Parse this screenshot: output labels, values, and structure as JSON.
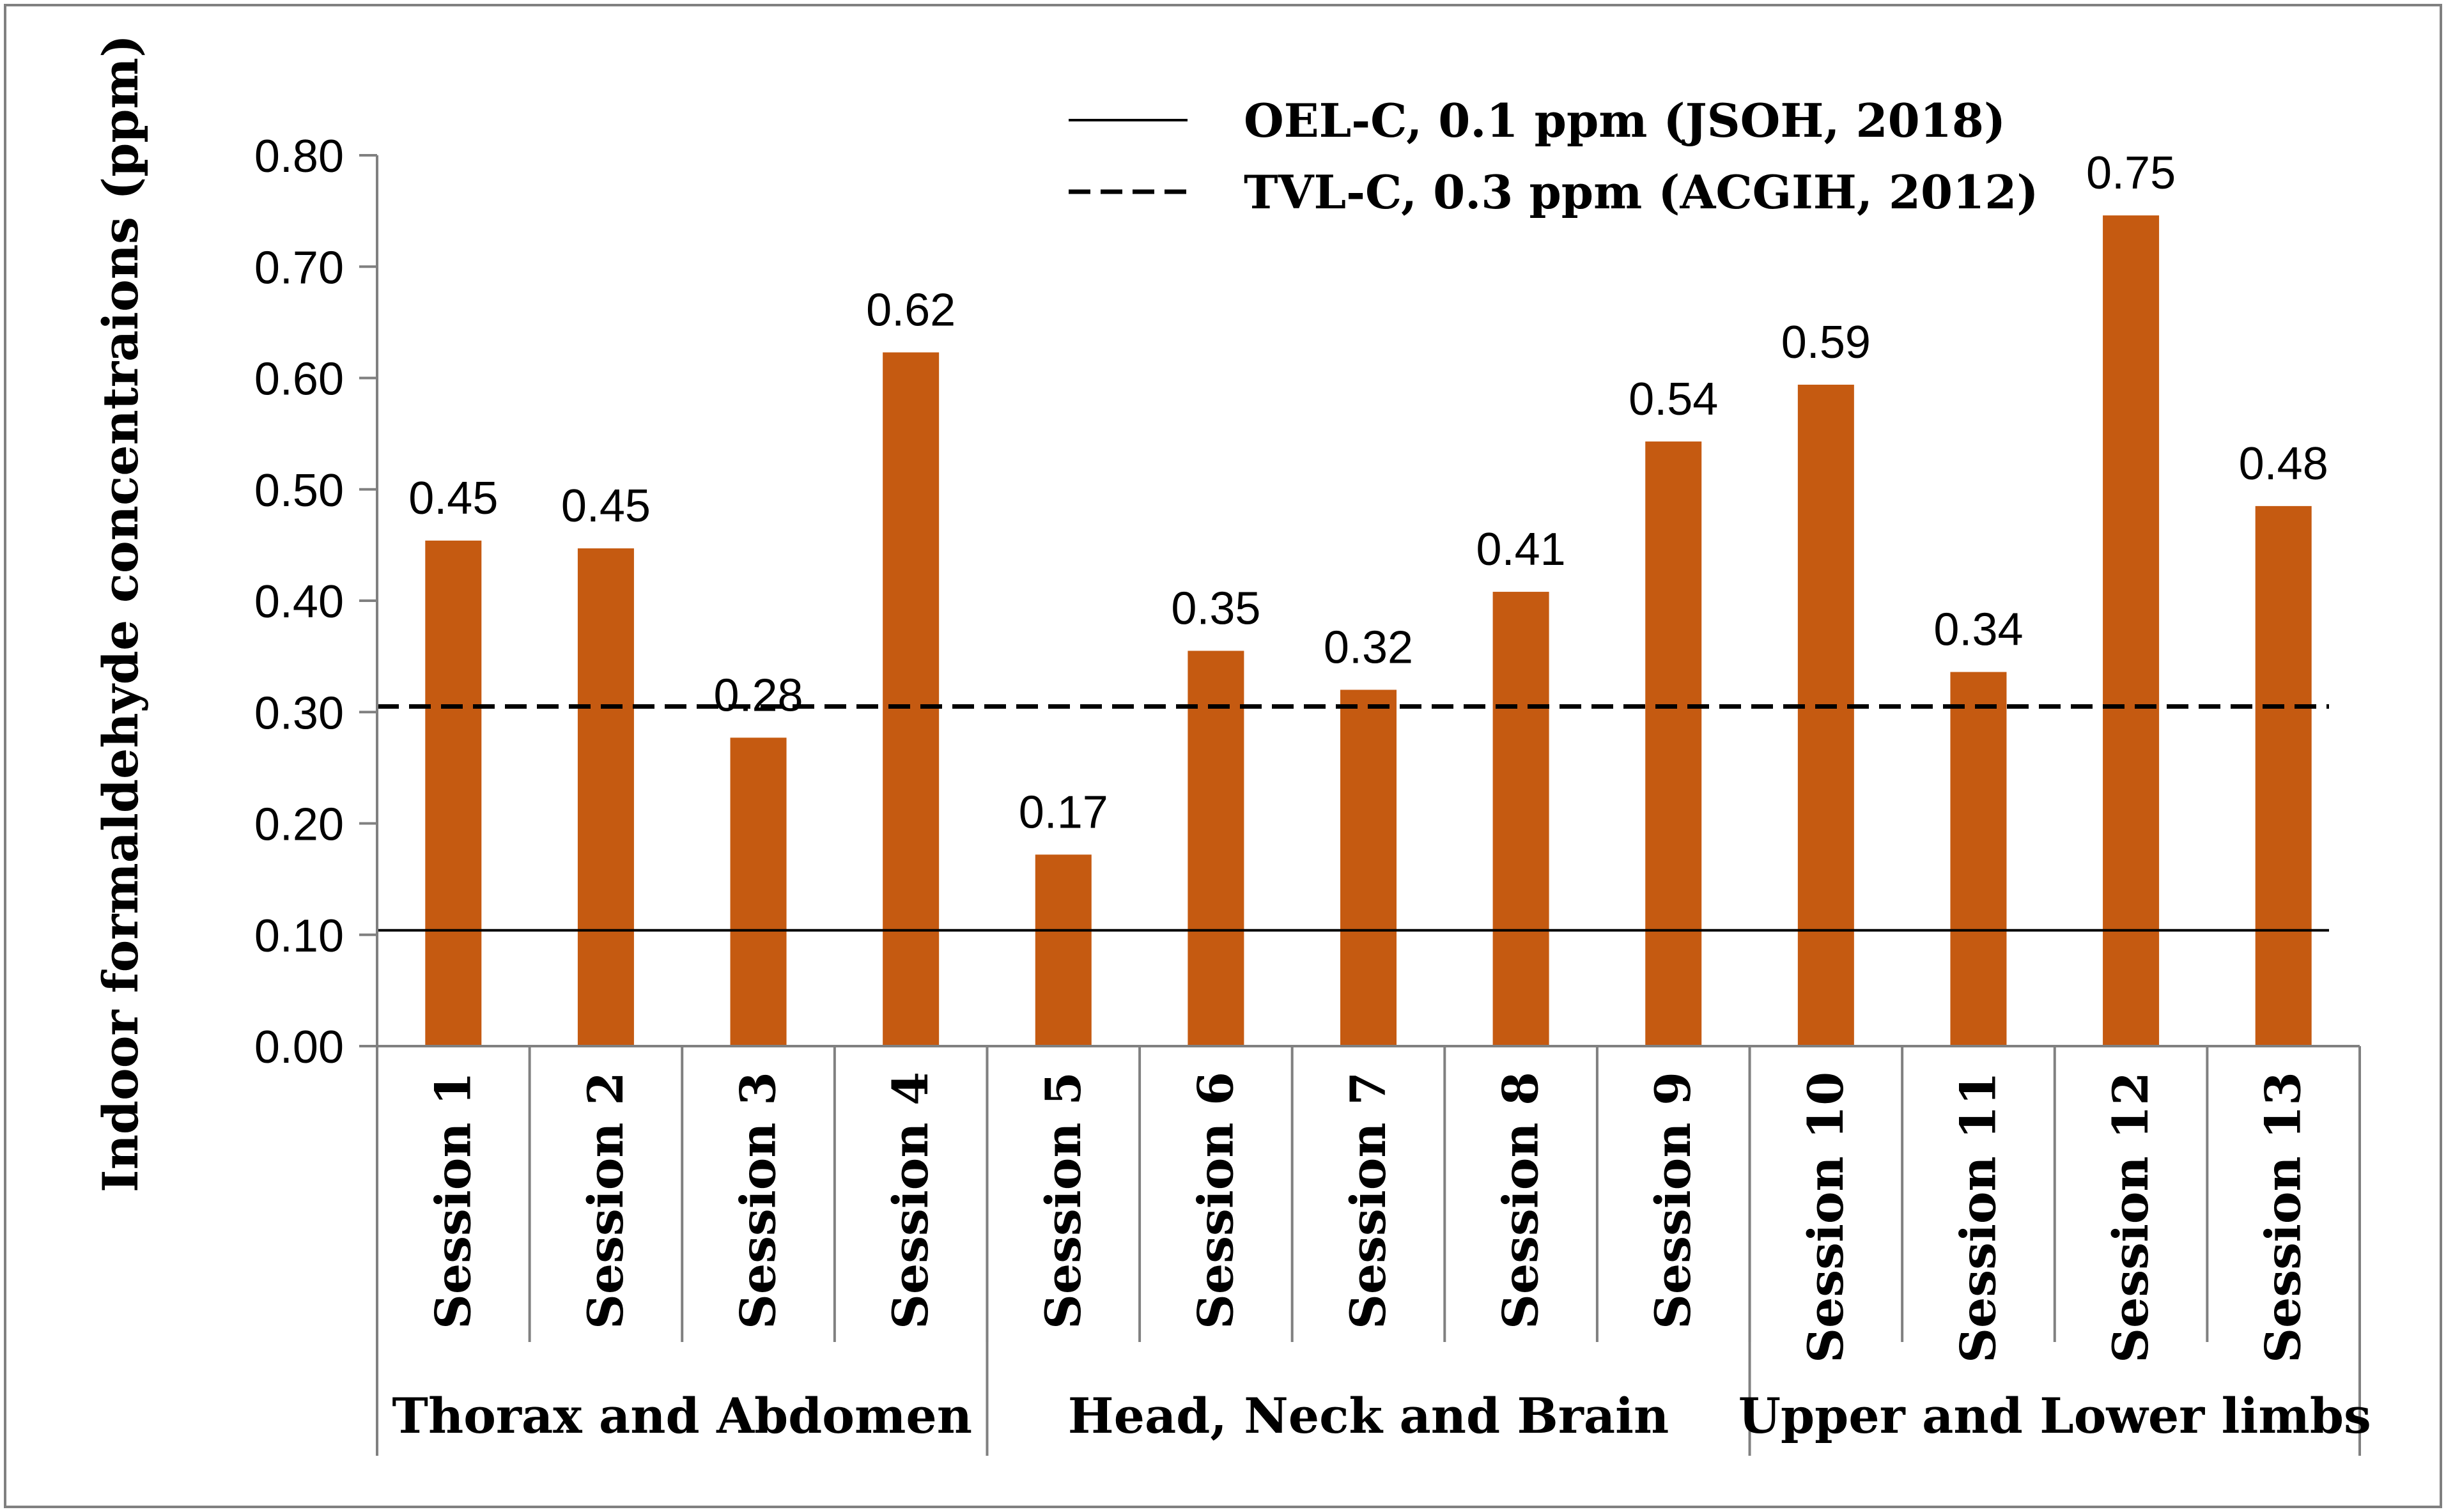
{
  "chart_data": {
    "type": "bar",
    "ylabel": "Indoor  formaldehyde concentraions (ppm)",
    "ylim": [
      0,
      0.8
    ],
    "yticks": [
      "0.00",
      "0.10",
      "0.20",
      "0.30",
      "0.40",
      "0.50",
      "0.60",
      "0.70",
      "0.80"
    ],
    "ytick_values": [
      0,
      0.1,
      0.2,
      0.3,
      0.4,
      0.5,
      0.6,
      0.7,
      0.8
    ],
    "categories": [
      "Session 1",
      "Session 2",
      "Session 3",
      "Session 4",
      "Session 5",
      "Session 6",
      "Session 7",
      "Session 8",
      "Session 9",
      "Session 10",
      "Session 11",
      "Session 12",
      "Session 13"
    ],
    "values": [
      0.454,
      0.447,
      0.277,
      0.623,
      0.172,
      0.355,
      0.32,
      0.408,
      0.543,
      0.594,
      0.336,
      0.746,
      0.485
    ],
    "value_labels": [
      "0.45",
      "0.45",
      "0.28",
      "0.62",
      "0.17",
      "0.35",
      "0.32",
      "0.41",
      "0.54",
      "0.59",
      "0.34",
      "0.75",
      "0.48"
    ],
    "groups": [
      {
        "label": "Thorax and Abdomen",
        "count": 4
      },
      {
        "label": "Head,  Neck and Brain",
        "count": 5
      },
      {
        "label": "Upper and Lower limbs",
        "count": 4
      }
    ],
    "reference_lines": [
      {
        "label": "OEL-C, 0.1 ppm (JSOH, 2018)",
        "value": 0.104,
        "style": "solid"
      },
      {
        "label": "TVL-C, 0.3 ppm (ACGIH, 2012)",
        "value": 0.305,
        "style": "dashed"
      }
    ],
    "legend_position": "top-center",
    "colors": {
      "bar": "#C55A11",
      "axis": "#808080",
      "text": "#000000",
      "frame": "#808080"
    }
  }
}
